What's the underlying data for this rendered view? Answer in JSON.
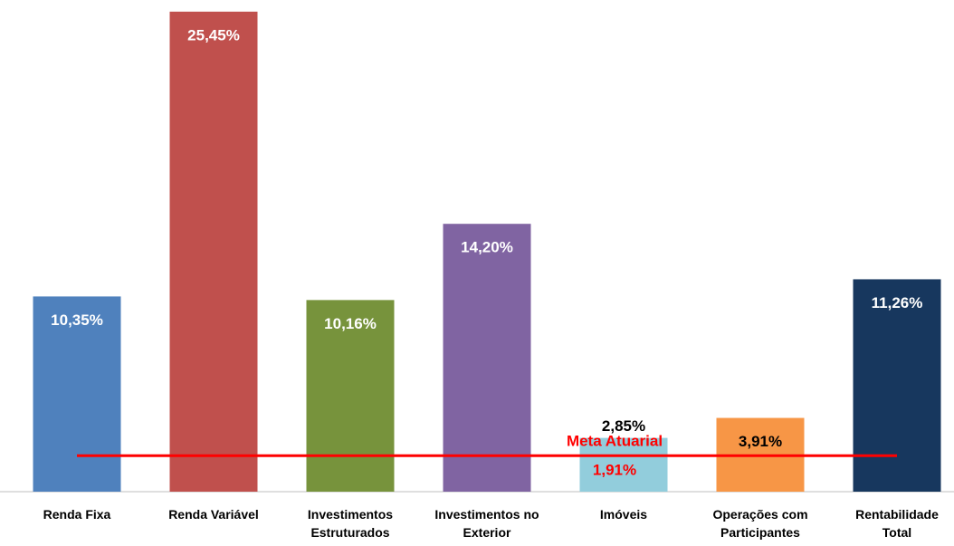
{
  "chart_data": {
    "type": "bar",
    "categories": [
      "Renda Fixa",
      "Renda Variável",
      "Investimentos\nEstruturados",
      "Investimentos no\nExterior",
      "Imóveis",
      "Operações com\nParticipantes",
      "Rentabilidade\nTotal"
    ],
    "values": [
      10.35,
      25.45,
      10.16,
      14.2,
      2.85,
      3.91,
      11.26
    ],
    "value_labels": [
      "10,35%",
      "25,45%",
      "10,16%",
      "14,20%",
      "2,85%",
      "3,91%",
      "11,26%"
    ],
    "colors": [
      "#4f81bd",
      "#c0504d",
      "#77933c",
      "#8064a2",
      "#92cddc",
      "#f79646",
      "#17375e"
    ],
    "label_colors": [
      "#ffffff",
      "#ffffff",
      "#ffffff",
      "#ffffff",
      "#000000",
      "#000000",
      "#ffffff"
    ],
    "ylim": [
      0,
      26
    ],
    "reference": {
      "label": "Meta Atuarial",
      "value": 1.91,
      "value_label": "1,91%",
      "color": "#ff0000"
    }
  }
}
